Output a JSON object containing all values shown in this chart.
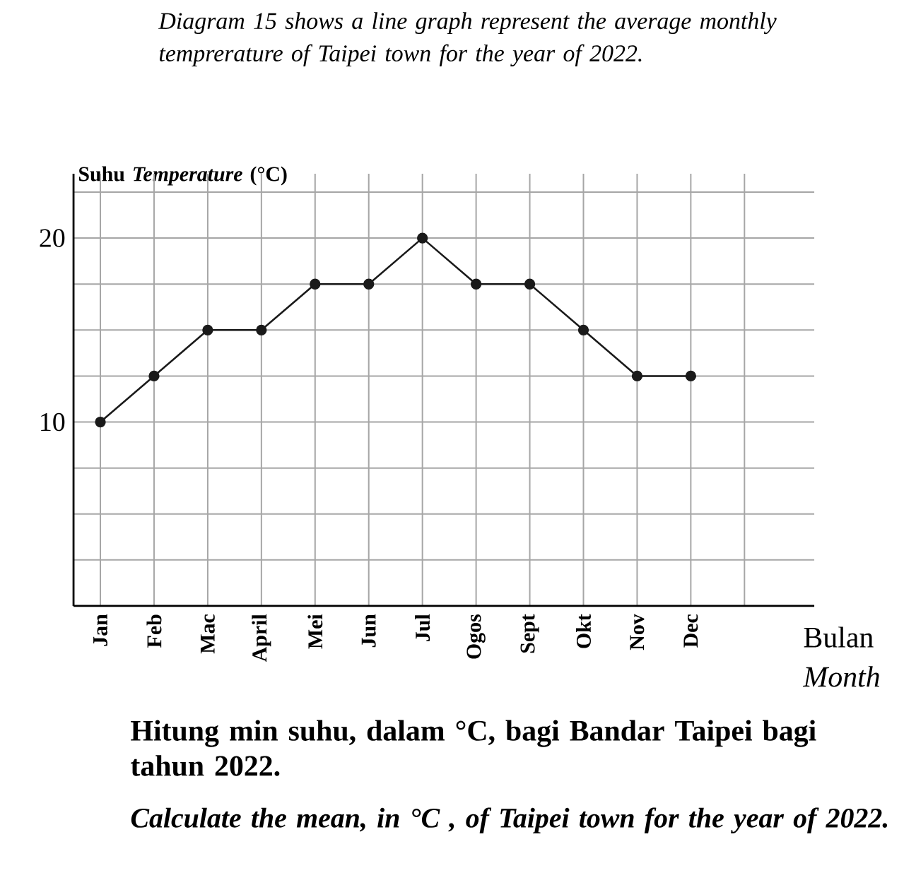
{
  "chart_data": {
    "type": "line",
    "title": "Diagram 15 shows a line graph represent the average monthly temprerature of Taipei town for the year of 2022.",
    "ylabel": "Suhu *Temperature* (°C)",
    "xlabel": "Bulan *Month*",
    "categories": [
      "Jan",
      "Feb",
      "Mac",
      "April",
      "Mei",
      "Jun",
      "Jul",
      "Ogos",
      "Sept",
      "Okt",
      "Nov",
      "Dec"
    ],
    "values": [
      10,
      12.5,
      15,
      15,
      17.5,
      17.5,
      20,
      17.5,
      17.5,
      15,
      12.5,
      12.5
    ],
    "color": "#1a1a1a",
    "marker": "circle",
    "grid": true,
    "ylim": [
      0,
      23.5
    ],
    "yticks": [
      {
        "value": 0,
        "label": null
      },
      {
        "value": 2.5,
        "label": null
      },
      {
        "value": 5,
        "label": null
      },
      {
        "value": 7.5,
        "label": null
      },
      10,
      {
        "value": 12.5,
        "label": null
      },
      {
        "value": 15,
        "label": null
      },
      {
        "value": 17.5,
        "label": null
      },
      20,
      {
        "value": 22.5,
        "label": null
      }
    ],
    "annotations": [
      "Hitung min suhu, dalam °C, bagi Bandar Taipei bagi tahun 2022.",
      "Calculate the mean, in °C , of Taipei town for the year of 2022."
    ]
  }
}
